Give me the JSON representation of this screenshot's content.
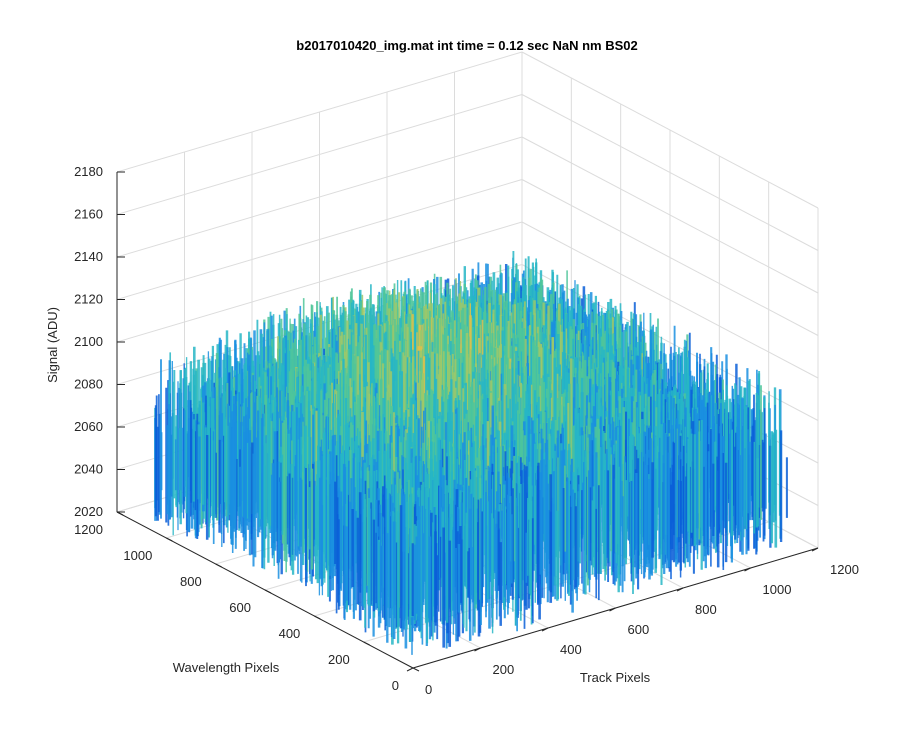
{
  "chart_data": {
    "type": "surface",
    "title": "b2017010420_img.mat int time = 0.12 sec  NaN nm BS02",
    "xlabel": "Track Pixels",
    "ylabel": "Wavelength Pixels",
    "zlabel": "Signal (ADU)",
    "xlim": [
      0,
      1200
    ],
    "ylim": [
      0,
      1200
    ],
    "zlim": [
      2020,
      2180
    ],
    "xticks": [
      "0",
      "200",
      "400",
      "600",
      "800",
      "1000",
      "1200"
    ],
    "yticks": [
      "0",
      "200",
      "400",
      "600",
      "800",
      "1000",
      "1200"
    ],
    "zticks": [
      "2020",
      "2040",
      "2060",
      "2080",
      "2100",
      "2120",
      "2140",
      "2160",
      "2180"
    ],
    "grid": true,
    "colormap": [
      "#0b5fd8",
      "#1a8fe0",
      "#27b6c6",
      "#4fc59a",
      "#9cc86a",
      "#e0c04a",
      "#f0b838"
    ],
    "surface_summary": {
      "data_extent_x": [
        0,
        1100
      ],
      "data_extent_y": [
        0,
        1050
      ],
      "mean_signal": 2085,
      "central_region_signal": 2115,
      "noise_amplitude": 30
    }
  }
}
